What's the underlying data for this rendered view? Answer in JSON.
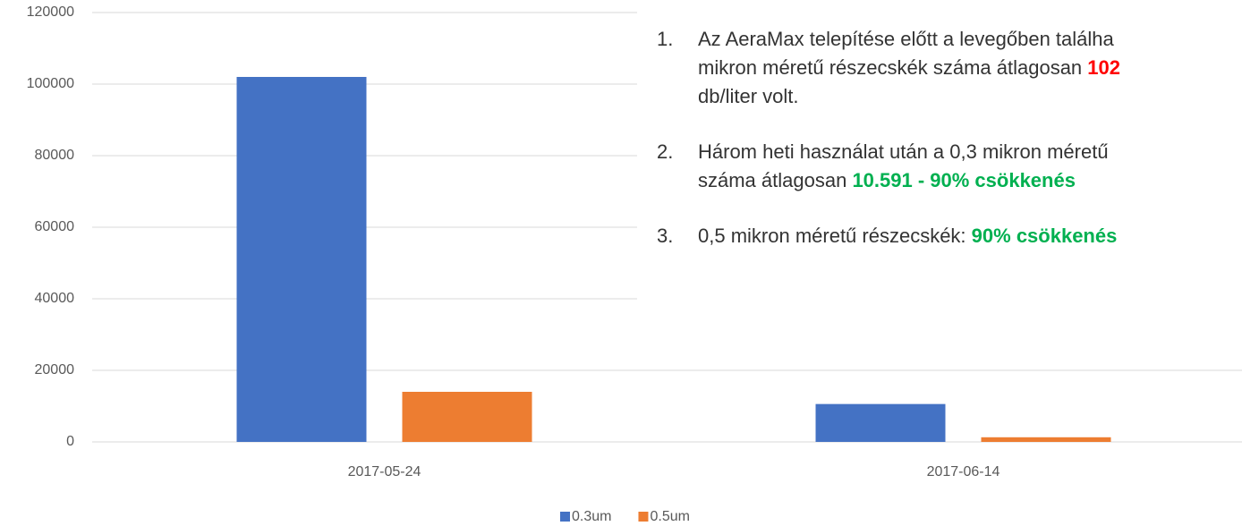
{
  "chart_data": {
    "type": "bar",
    "categories": [
      "2017-05-24",
      "2017-06-14"
    ],
    "series": [
      {
        "name": "0.3um",
        "color": "#4472c4",
        "values": [
          102000,
          10591
        ]
      },
      {
        "name": "0.5um",
        "color": "#ed7d31",
        "values": [
          14000,
          1300
        ]
      }
    ],
    "ylim": [
      0,
      120000
    ],
    "yticks": [
      0,
      20000,
      40000,
      60000,
      80000,
      100000,
      120000
    ],
    "grid": true,
    "legend": "bottom",
    "annotations": [
      {
        "number": "1.",
        "lines": [
          [
            {
              "text": "Az AeraMax telepítése előtt a levegőben találha"
            }
          ],
          [
            {
              "text": "mikron méretű részecskék száma átlagosan "
            },
            {
              "text": "102",
              "color": "#ff0000"
            }
          ],
          [
            {
              "text": "db/liter volt."
            }
          ]
        ]
      },
      {
        "number": "2.",
        "lines": [
          [
            {
              "text": "Három heti használat után a 0,3 mikron méretű"
            }
          ],
          [
            {
              "text": "száma átlagosan "
            },
            {
              "text": "10.591 - 90% csökkenés",
              "color": "#00b050"
            }
          ]
        ]
      },
      {
        "number": "3.",
        "lines": [
          [
            {
              "text": "0,5 mikron méretű részecskék: "
            },
            {
              "text": "90% csökkenés",
              "color": "#00b050"
            }
          ]
        ]
      }
    ]
  }
}
